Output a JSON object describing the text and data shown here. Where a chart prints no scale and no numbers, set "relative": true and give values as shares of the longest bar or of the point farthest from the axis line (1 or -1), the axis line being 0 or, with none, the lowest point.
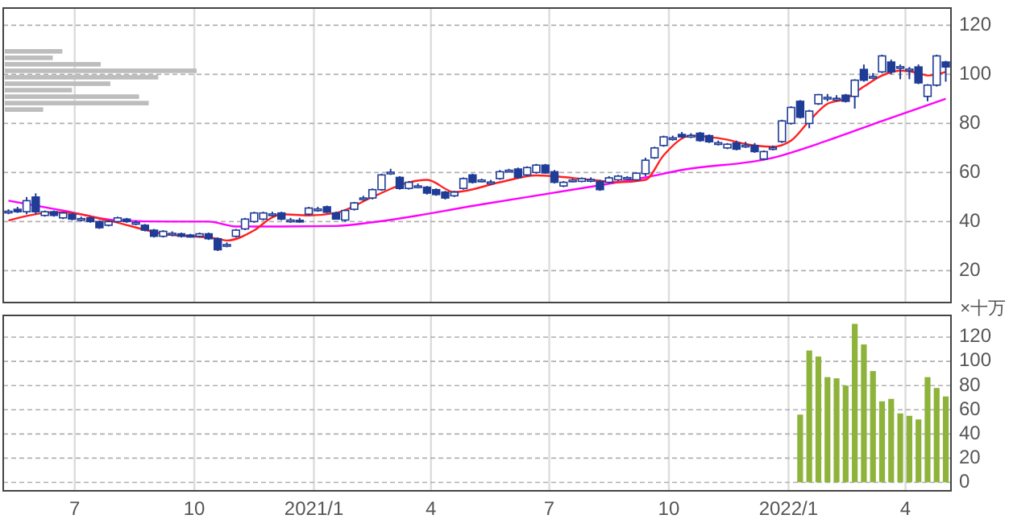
{
  "chart_data": [
    {
      "type": "candlestick",
      "color": "#1f3c96",
      "grid": true,
      "tick_labels": "y",
      "xlim": [
        "2020-05-07",
        "2022-05-06"
      ],
      "ylim": [
        7,
        127
      ],
      "yticks": [
        20,
        40,
        60,
        80,
        100,
        120
      ],
      "xticks": [
        {
          "value": "2020-07-01",
          "label": null
        },
        {
          "value": "2020-10-01",
          "label": null
        },
        {
          "value": "2021-01-01",
          "label": null
        },
        {
          "value": "2021-04-01",
          "label": null
        },
        {
          "value": "2021-07-01",
          "label": null
        },
        {
          "value": "2021-10-01",
          "label": null
        },
        {
          "value": "2022-01-01",
          "label": null
        },
        {
          "value": "2022-04-01",
          "label": null
        }
      ],
      "x": [
        "2020-05-11",
        "2020-05-18",
        "2020-05-25",
        "2020-06-01",
        "2020-06-08",
        "2020-06-15",
        "2020-06-22",
        "2020-06-29",
        "2020-07-06",
        "2020-07-13",
        "2020-07-20",
        "2020-07-27",
        "2020-08-03",
        "2020-08-10",
        "2020-08-17",
        "2020-08-24",
        "2020-08-31",
        "2020-09-07",
        "2020-09-14",
        "2020-09-21",
        "2020-09-28",
        "2020-10-05",
        "2020-10-12",
        "2020-10-19",
        "2020-10-26",
        "2020-11-02",
        "2020-11-09",
        "2020-11-16",
        "2020-11-23",
        "2020-11-30",
        "2020-12-07",
        "2020-12-14",
        "2020-12-21",
        "2020-12-28",
        "2021-01-04",
        "2021-01-11",
        "2021-01-18",
        "2021-01-25",
        "2021-02-01",
        "2021-02-08",
        "2021-02-15",
        "2021-02-22",
        "2021-03-01",
        "2021-03-08",
        "2021-03-15",
        "2021-03-22",
        "2021-03-29",
        "2021-04-05",
        "2021-04-12",
        "2021-04-19",
        "2021-04-26",
        "2021-05-03",
        "2021-05-10",
        "2021-05-17",
        "2021-05-24",
        "2021-05-31",
        "2021-06-07",
        "2021-06-14",
        "2021-06-21",
        "2021-06-28",
        "2021-07-05",
        "2021-07-12",
        "2021-07-19",
        "2021-07-26",
        "2021-08-02",
        "2021-08-09",
        "2021-08-16",
        "2021-08-23",
        "2021-08-30",
        "2021-09-06",
        "2021-09-13",
        "2021-09-20",
        "2021-09-27",
        "2021-10-04",
        "2021-10-11",
        "2021-10-18",
        "2021-10-25",
        "2021-11-01",
        "2021-11-08",
        "2021-11-15",
        "2021-11-22",
        "2021-11-29",
        "2021-12-06",
        "2021-12-13",
        "2021-12-20",
        "2021-12-27",
        "2022-01-03",
        "2022-01-10",
        "2022-01-17",
        "2022-01-24",
        "2022-01-31",
        "2022-02-07",
        "2022-02-14",
        "2022-02-21",
        "2022-02-28",
        "2022-03-07",
        "2022-03-14",
        "2022-03-21",
        "2022-03-28",
        "2022-04-04",
        "2022-04-11",
        "2022-04-18",
        "2022-04-25",
        "2022-05-02"
      ],
      "ohlc": [
        [
          44,
          45,
          43,
          44.2
        ],
        [
          45,
          46,
          43.5,
          44
        ],
        [
          44,
          50,
          43,
          48.5
        ],
        [
          50,
          51.5,
          43,
          44
        ],
        [
          42.5,
          44.5,
          42,
          44
        ],
        [
          44,
          44.5,
          42,
          42.5
        ],
        [
          41.5,
          44,
          41,
          43.5
        ],
        [
          43,
          43.5,
          40.5,
          41
        ],
        [
          41,
          42,
          40,
          41.2
        ],
        [
          41.5,
          42,
          39.5,
          40
        ],
        [
          40,
          40.5,
          37,
          37.5
        ],
        [
          38.5,
          40.5,
          38,
          40
        ],
        [
          40,
          42,
          39.5,
          41.5
        ],
        [
          41,
          41.5,
          39.5,
          40
        ],
        [
          39.5,
          40.5,
          38.5,
          39.6
        ],
        [
          38.5,
          39,
          36,
          36.5
        ],
        [
          36.5,
          37,
          33.5,
          34
        ],
        [
          34,
          36.5,
          33.5,
          36
        ],
        [
          35,
          36,
          34,
          35.2
        ],
        [
          35,
          35.5,
          33.5,
          34
        ],
        [
          34.5,
          35,
          33.5,
          33.7
        ],
        [
          34,
          35.5,
          33.5,
          35
        ],
        [
          35,
          35.5,
          32.5,
          33
        ],
        [
          33,
          33.5,
          28,
          28.5
        ],
        [
          30.5,
          31.5,
          29.5,
          30.6
        ],
        [
          34,
          37,
          33.5,
          36.5
        ],
        [
          37,
          41.5,
          36.5,
          41
        ],
        [
          40,
          44,
          39.5,
          43.5
        ],
        [
          41,
          44,
          40.5,
          43.5
        ],
        [
          43,
          44,
          42,
          43.1
        ],
        [
          43.5,
          44,
          40.5,
          41
        ],
        [
          40.5,
          41.5,
          39.5,
          40.6
        ],
        [
          40.5,
          41.5,
          39.5,
          40.4
        ],
        [
          43,
          46,
          42.5,
          45.5
        ],
        [
          45,
          46,
          44,
          45.1
        ],
        [
          46,
          46.5,
          43.5,
          43.8
        ],
        [
          43.5,
          44,
          40.8,
          41
        ],
        [
          40.6,
          45,
          40,
          44.5
        ],
        [
          45,
          48,
          44.5,
          47.6
        ],
        [
          49.5,
          50.5,
          48.5,
          49.6
        ],
        [
          49.6,
          53.5,
          49,
          53
        ],
        [
          53,
          59.5,
          52.5,
          59
        ],
        [
          60,
          61.5,
          59,
          60.1
        ],
        [
          58,
          58.5,
          53,
          53.5
        ],
        [
          53.5,
          56.5,
          53,
          56
        ],
        [
          54.4,
          55.5,
          53.5,
          54.5
        ],
        [
          54,
          54.5,
          51,
          51.6
        ],
        [
          53,
          53.5,
          50.5,
          51
        ],
        [
          52,
          52.5,
          49,
          49.6
        ],
        [
          50.5,
          52.5,
          50,
          52
        ],
        [
          53.5,
          58,
          53,
          57.5
        ],
        [
          59,
          59.5,
          55.5,
          56
        ],
        [
          56.8,
          57.5,
          56,
          56.9
        ],
        [
          56,
          57,
          55,
          56.1
        ],
        [
          57.5,
          61,
          57,
          60.3
        ],
        [
          60.8,
          61.5,
          60,
          60.9
        ],
        [
          61.4,
          62,
          57.5,
          58
        ],
        [
          59,
          62.5,
          58.5,
          62
        ],
        [
          60,
          63.5,
          59.5,
          63
        ],
        [
          63,
          63.5,
          59.5,
          59.8
        ],
        [
          60.3,
          61,
          55.5,
          56
        ],
        [
          54.5,
          56.5,
          54,
          56
        ],
        [
          56.8,
          57.5,
          56,
          56.9
        ],
        [
          56.4,
          58,
          56,
          57.5
        ],
        [
          57,
          58,
          56,
          57.1
        ],
        [
          56.3,
          57,
          52.5,
          53
        ],
        [
          56,
          58.5,
          55.5,
          57.8
        ],
        [
          57,
          59,
          56.5,
          58.5
        ],
        [
          57.8,
          58.5,
          57,
          57.9
        ],
        [
          57,
          60,
          56.5,
          59.7
        ],
        [
          59.5,
          66,
          58.5,
          65
        ],
        [
          66,
          70.5,
          65.5,
          70
        ],
        [
          71,
          75,
          70.5,
          74.5
        ],
        [
          74,
          75,
          73,
          74.1
        ],
        [
          75.5,
          76.5,
          74,
          74.5
        ],
        [
          75,
          76,
          74,
          75.1
        ],
        [
          76,
          76.5,
          72.5,
          73
        ],
        [
          75,
          75.5,
          72,
          72.5
        ],
        [
          72,
          73,
          71,
          72.1
        ],
        [
          70,
          72,
          69.5,
          71.5
        ],
        [
          72,
          73,
          69,
          69.5
        ],
        [
          71,
          72.5,
          70,
          71.1
        ],
        [
          71,
          72,
          68,
          68.5
        ],
        [
          65.5,
          69,
          65,
          68.5
        ],
        [
          70,
          71,
          69,
          70.1
        ],
        [
          72.6,
          81.5,
          72,
          81
        ],
        [
          80,
          87,
          79.5,
          86.5
        ],
        [
          89,
          89.5,
          82,
          82.5
        ],
        [
          80,
          85.5,
          78,
          85
        ],
        [
          88,
          92,
          87.5,
          91.7
        ],
        [
          90.5,
          92,
          89,
          90.6
        ],
        [
          90,
          91.5,
          89,
          90.2
        ],
        [
          91.5,
          92,
          88.5,
          89
        ],
        [
          91,
          98,
          86,
          97.6
        ],
        [
          102,
          104,
          97,
          97.6
        ],
        [
          99,
          100.5,
          98,
          99.1
        ],
        [
          101,
          108,
          100.5,
          107.5
        ],
        [
          105,
          106,
          100,
          101
        ],
        [
          103,
          104,
          98,
          103.1
        ],
        [
          102,
          103,
          98,
          102.1
        ],
        [
          103,
          104,
          96,
          96.5
        ],
        [
          91,
          96,
          89,
          95.6
        ],
        [
          95.6,
          108,
          95,
          107.5
        ],
        [
          105,
          105.5,
          97,
          103
        ]
      ],
      "series": [
        {
          "type": "line",
          "color": "#ff00ff",
          "x": [
            "2020-05-11",
            "2020-06-22",
            "2020-08-03",
            "2020-09-14",
            "2020-10-12",
            "2020-11-02",
            "2020-12-07",
            "2021-01-18",
            "2021-02-15",
            "2021-05-10",
            "2021-08-09",
            "2021-09-13",
            "2021-10-11",
            "2021-12-20",
            "2022-01-31",
            "2022-03-14",
            "2022-05-02"
          ],
          "values": [
            48.5,
            44.5,
            40.5,
            40,
            40,
            38,
            38,
            38.2,
            39.7,
            47,
            54.8,
            58,
            61,
            66,
            73,
            81,
            90
          ]
        },
        {
          "type": "line",
          "color": "#ff2020",
          "x": [
            "2020-05-11",
            "2020-06-08",
            "2020-06-22",
            "2020-07-27",
            "2020-09-07",
            "2020-10-19",
            "2020-10-26",
            "2020-11-16",
            "2020-11-30",
            "2020-12-07",
            "2020-12-28",
            "2021-01-18",
            "2021-02-15",
            "2021-03-15",
            "2021-03-29",
            "2021-04-19",
            "2021-05-24",
            "2021-06-21",
            "2021-08-02",
            "2021-08-23",
            "2021-09-13",
            "2021-09-27",
            "2021-10-18",
            "2021-11-08",
            "2021-12-06",
            "2021-12-20",
            "2022-01-03",
            "2022-01-17",
            "2022-01-31",
            "2022-02-14",
            "2022-02-28",
            "2022-03-14",
            "2022-03-28",
            "2022-04-11",
            "2022-04-18",
            "2022-05-02"
          ],
          "values": [
            40.4,
            43.5,
            43.8,
            40.4,
            35,
            33,
            32.3,
            36.4,
            41.7,
            43,
            42.5,
            43.5,
            50,
            56,
            57,
            52,
            56,
            58.8,
            57,
            56,
            57,
            67,
            75,
            74,
            71,
            70.5,
            73,
            81,
            88,
            90,
            95,
            99.5,
            101.5,
            100.5,
            99.5,
            101
          ]
        }
      ]
    },
    {
      "type": "bar",
      "color": "#8db33a",
      "grid": true,
      "annotations": [
        "×十万"
      ],
      "xlim": [
        "2020-05-07",
        "2022-05-06"
      ],
      "ylim": [
        -7,
        138
      ],
      "yticks": [
        0,
        20,
        40,
        60,
        80,
        100,
        120
      ],
      "xticks": [
        {
          "value": "2020-07-01",
          "label": "7"
        },
        {
          "value": "2020-10-01",
          "label": "10"
        },
        {
          "value": "2021-01-01",
          "label": "2021/1"
        },
        {
          "value": "2021-04-01",
          "label": "4"
        },
        {
          "value": "2021-07-01",
          "label": "7"
        },
        {
          "value": "2021-10-01",
          "label": "10"
        },
        {
          "value": "2022-01-01",
          "label": "2022/1"
        },
        {
          "value": "2022-04-01",
          "label": "4"
        }
      ],
      "x": [
        "2022-01-10",
        "2022-01-17",
        "2022-01-24",
        "2022-01-31",
        "2022-02-07",
        "2022-02-14",
        "2022-02-21",
        "2022-02-28",
        "2022-03-07",
        "2022-03-14",
        "2022-03-21",
        "2022-03-28",
        "2022-04-04",
        "2022-04-11",
        "2022-04-18",
        "2022-04-25",
        "2022-05-02"
      ],
      "values": [
        56,
        109,
        104,
        87,
        86,
        80,
        131,
        114,
        92,
        67,
        69,
        57,
        55,
        52,
        87,
        78,
        71
      ]
    },
    {
      "type": "bar",
      "orientation": "horizontal",
      "relative": true,
      "color": "#bdbdbd",
      "categories": [
        null,
        null,
        null,
        null,
        null,
        null,
        null,
        null,
        null,
        null
      ],
      "values": [
        0.3,
        0.25,
        0.5,
        1,
        0.8,
        0.55,
        0.35,
        0.7,
        0.75,
        0.2
      ]
    }
  ]
}
